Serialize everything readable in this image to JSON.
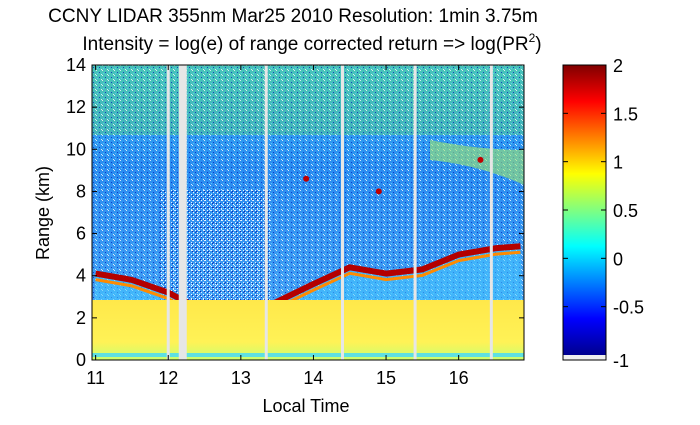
{
  "chart_data": {
    "type": "heatmap",
    "title_line1": "CCNY LIDAR 355nm Mar25 2010 Resolution: 1min 3.75m",
    "title_line2_prefix": "Intensity = log(e) of range corrected return => log(PR",
    "title_line2_sup": "2",
    "title_line2_suffix": ")",
    "xlabel": "Local Time",
    "ylabel": "Range (km)",
    "xlim": [
      10.95,
      16.9
    ],
    "ylim": [
      0,
      14
    ],
    "x_ticks": [
      11,
      12,
      13,
      14,
      15,
      16
    ],
    "x_tick_labels": [
      "11",
      "12",
      "13",
      "14",
      "15",
      "16"
    ],
    "y_ticks": [
      0,
      2,
      4,
      6,
      8,
      10,
      12,
      14
    ],
    "y_tick_labels": [
      "0",
      "2",
      "4",
      "6",
      "8",
      "10",
      "12",
      "14"
    ],
    "colorbar": {
      "clim": [
        -1,
        2
      ],
      "ticks": [
        2,
        1.5,
        1,
        0.5,
        0,
        -0.5,
        -1
      ],
      "tick_labels": [
        "2",
        "1.5",
        "1",
        "0.5",
        "0",
        "-0.5",
        "-1"
      ]
    },
    "data_gaps_hours": [
      12.0,
      12.2,
      13.35,
      14.4,
      15.4,
      16.45
    ],
    "aerosol_layer_top_km": [
      [
        11.0,
        4.1
      ],
      [
        11.5,
        3.8
      ],
      [
        12.0,
        3.2
      ],
      [
        12.5,
        2.3
      ],
      [
        13.0,
        2.4
      ],
      [
        13.4,
        2.6
      ],
      [
        14.0,
        3.6
      ],
      [
        14.5,
        4.4
      ],
      [
        15.0,
        4.1
      ],
      [
        15.5,
        4.3
      ],
      [
        16.0,
        5.0
      ],
      [
        16.5,
        5.3
      ],
      [
        16.85,
        5.4
      ]
    ],
    "cloud_features": [
      {
        "time": 13.9,
        "range_km": 8.6
      },
      {
        "time": 14.9,
        "range_km": 8.0
      },
      {
        "time": 16.3,
        "range_km": 9.5
      }
    ]
  }
}
